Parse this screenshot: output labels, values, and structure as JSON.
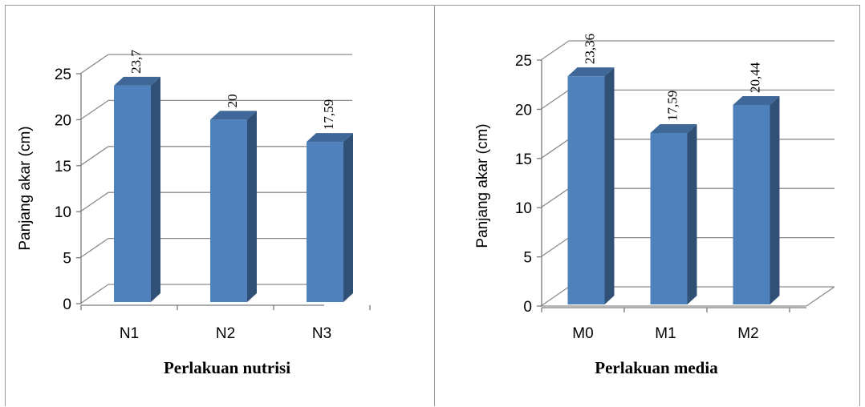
{
  "chart_data": [
    {
      "type": "bar",
      "categories": [
        "N1",
        "N2",
        "N3"
      ],
      "values": [
        23.7,
        20,
        17.59
      ],
      "data_labels": [
        "23,7",
        "20",
        "17,59"
      ],
      "xlabel": "Perlakuan nutrisi",
      "ylabel": "Panjang akar (cm)",
      "ylim": [
        0,
        25
      ],
      "yticks": [
        0,
        5,
        10,
        15,
        20,
        25
      ],
      "grid": true,
      "style": "3d-column",
      "bar_color": "#4F81BD"
    },
    {
      "type": "bar",
      "categories": [
        "M0",
        "M1",
        "M2"
      ],
      "values": [
        23.36,
        17.59,
        20.44
      ],
      "data_labels": [
        "23,36",
        "17,59",
        "20,44"
      ],
      "xlabel": "Perlakuan media",
      "ylabel": "Panjang akar (cm)",
      "ylim": [
        0,
        25
      ],
      "yticks": [
        0,
        5,
        10,
        15,
        20,
        25
      ],
      "grid": true,
      "style": "3d-column",
      "bar_color": "#4F81BD"
    }
  ]
}
